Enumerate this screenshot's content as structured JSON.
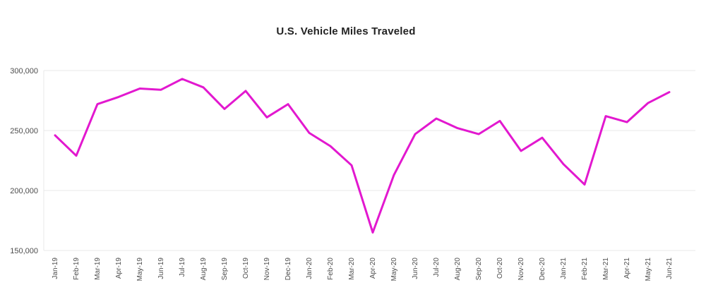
{
  "page": {
    "background_color": "#ffffff"
  },
  "chart_data": {
    "type": "line",
    "title": "U.S. Vehicle Miles Traveled",
    "xlabel": "",
    "ylabel": "",
    "categories": [
      "Jan-19",
      "Feb-19",
      "Mar-19",
      "Apr-19",
      "May-19",
      "Jun-19",
      "Jul-19",
      "Aug-19",
      "Sep-19",
      "Oct-19",
      "Nov-19",
      "Dec-19",
      "Jan-20",
      "Feb-20",
      "Mar-20",
      "Apr-20",
      "May-20",
      "Jun-20",
      "Jul-20",
      "Aug-20",
      "Sep-20",
      "Oct-20",
      "Nov-20",
      "Dec-20",
      "Jan-21",
      "Feb-21",
      "Mar-21",
      "Apr-21",
      "May-21",
      "Jun-21"
    ],
    "values": [
      246000,
      229000,
      272000,
      278000,
      285000,
      284000,
      293000,
      286000,
      268000,
      283000,
      261000,
      272000,
      248000,
      237000,
      221000,
      165000,
      213000,
      247000,
      260000,
      252000,
      247000,
      258000,
      233000,
      244000,
      222000,
      205000,
      262000,
      257000,
      273000,
      282000
    ],
    "ylim": [
      150000,
      300000
    ],
    "yticks": [
      {
        "value": 150000,
        "label": "150,000"
      },
      {
        "value": 200000,
        "label": "200,000"
      },
      {
        "value": 250000,
        "label": "250,000"
      },
      {
        "value": 300000,
        "label": "300,000"
      }
    ],
    "grid": true,
    "legend_position": "none",
    "line_color": "#e218cf",
    "grid_color": "#e9e9e9",
    "axis_line_color": "#e9e9e9",
    "tick_label_color": "#4d4d4d",
    "title_color": "#232323"
  }
}
